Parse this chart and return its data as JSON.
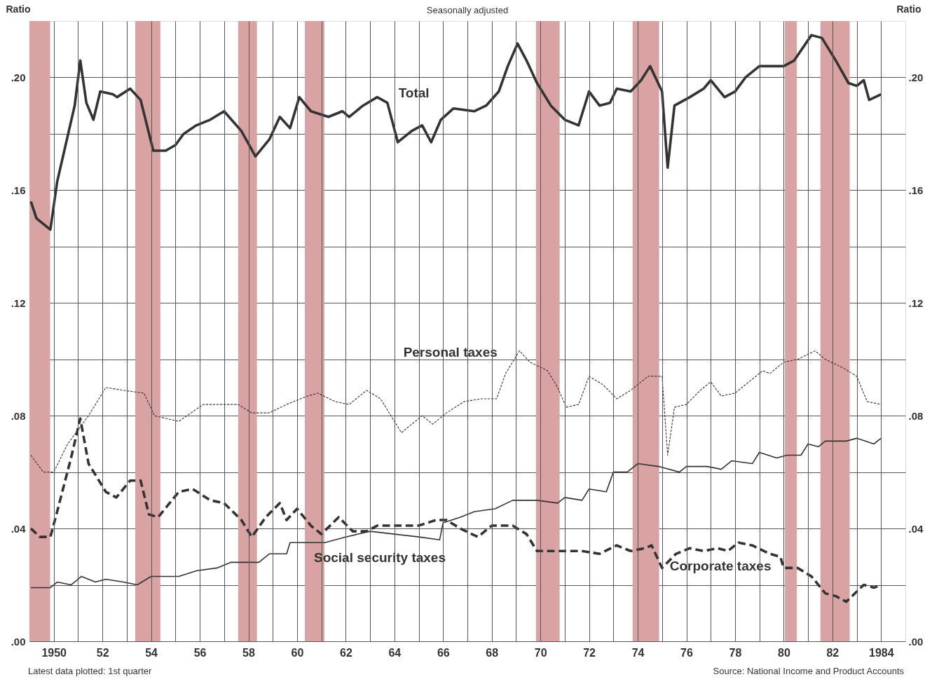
{
  "chart_data": {
    "type": "line",
    "title": "Seasonally adjusted",
    "ylabel": "Ratio",
    "y2label": "Ratio",
    "annotations": [
      "Latest data plotted: 1st quarter",
      "Source: National Income and Product Accounts"
    ],
    "xlim": [
      1949,
      1985
    ],
    "xticks": [
      {
        "value": 1950,
        "label": "1950"
      },
      {
        "value": 1951,
        "label": null
      },
      {
        "value": 1952,
        "label": "52"
      },
      {
        "value": 1953,
        "label": null
      },
      {
        "value": 1954,
        "label": "54"
      },
      {
        "value": 1955,
        "label": null
      },
      {
        "value": 1956,
        "label": "56"
      },
      {
        "value": 1957,
        "label": null
      },
      {
        "value": 1958,
        "label": "58"
      },
      {
        "value": 1959,
        "label": null
      },
      {
        "value": 1960,
        "label": "60"
      },
      {
        "value": 1961,
        "label": null
      },
      {
        "value": 1962,
        "label": "62"
      },
      {
        "value": 1963,
        "label": null
      },
      {
        "value": 1964,
        "label": "64"
      },
      {
        "value": 1965,
        "label": null
      },
      {
        "value": 1966,
        "label": "66"
      },
      {
        "value": 1967,
        "label": null
      },
      {
        "value": 1968,
        "label": "68"
      },
      {
        "value": 1969,
        "label": null
      },
      {
        "value": 1970,
        "label": "70"
      },
      {
        "value": 1971,
        "label": null
      },
      {
        "value": 1972,
        "label": "72"
      },
      {
        "value": 1973,
        "label": null
      },
      {
        "value": 1974,
        "label": "74"
      },
      {
        "value": 1975,
        "label": null
      },
      {
        "value": 1976,
        "label": "76"
      },
      {
        "value": 1977,
        "label": null
      },
      {
        "value": 1978,
        "label": "78"
      },
      {
        "value": 1979,
        "label": null
      },
      {
        "value": 1980,
        "label": "80"
      },
      {
        "value": 1981,
        "label": null
      },
      {
        "value": 1982,
        "label": "82"
      },
      {
        "value": 1983,
        "label": null
      },
      {
        "value": 1984,
        "label": "1984"
      }
    ],
    "ylim": [
      0,
      0.22
    ],
    "yticks": [
      {
        "value": 0,
        "label": ".00"
      },
      {
        "value": 0.02,
        "label": null
      },
      {
        "value": 0.04,
        "label": ".04"
      },
      {
        "value": 0.06,
        "label": null
      },
      {
        "value": 0.08,
        "label": ".08"
      },
      {
        "value": 0.1,
        "label": null
      },
      {
        "value": 0.12,
        "label": ".12"
      },
      {
        "value": 0.14,
        "label": null
      },
      {
        "value": 0.16,
        "label": ".16"
      },
      {
        "value": 0.18,
        "label": null
      },
      {
        "value": 0.2,
        "label": ".20"
      }
    ],
    "y2lim": [
      0,
      0.22
    ],
    "y2ticks": [
      {
        "value": 0,
        "label": ".00"
      },
      {
        "value": 0.04,
        "label": ".04"
      },
      {
        "value": 0.08,
        "label": ".08"
      },
      {
        "value": 0.12,
        "label": ".12"
      },
      {
        "value": 0.16,
        "label": ".16"
      },
      {
        "value": 0.2,
        "label": ".20"
      }
    ],
    "grid": true,
    "bands": [
      {
        "axis": "x",
        "from": 1949,
        "to": 1949.85,
        "color": "#d9a3a3"
      },
      {
        "axis": "x",
        "from": 1953.35,
        "to": 1954.38,
        "color": "#d9a3a3"
      },
      {
        "axis": "x",
        "from": 1957.58,
        "to": 1958.35,
        "color": "#d9a3a3"
      },
      {
        "axis": "x",
        "from": 1960.32,
        "to": 1961.12,
        "color": "#d9a3a3"
      },
      {
        "axis": "x",
        "from": 1969.82,
        "to": 1970.79,
        "color": "#d9a3a3"
      },
      {
        "axis": "x",
        "from": 1973.79,
        "to": 1974.88,
        "color": "#d9a3a3"
      },
      {
        "axis": "x",
        "from": 1980.05,
        "to": 1980.54,
        "color": "#d9a3a3"
      },
      {
        "axis": "x",
        "from": 1981.51,
        "to": 1982.71,
        "color": "#d9a3a3"
      }
    ],
    "series": [
      {
        "name": "Total",
        "color": "#333333",
        "line_style": "solid",
        "x": [
          1949.06,
          1949.29,
          1949.86,
          1950.14,
          1950.86,
          1951.09,
          1951.34,
          1951.63,
          1951.91,
          1952.43,
          1952.6,
          1953.14,
          1953.57,
          1954.09,
          1954.6,
          1955.0,
          1955.34,
          1955.86,
          1956.43,
          1957.0,
          1957.71,
          1958.29,
          1958.86,
          1959.29,
          1959.71,
          1960.09,
          1960.57,
          1961.29,
          1961.86,
          1962.14,
          1962.71,
          1963.29,
          1963.71,
          1964.14,
          1964.71,
          1965.14,
          1965.51,
          1965.91,
          1966.43,
          1967.29,
          1967.77,
          1968.29,
          1968.66,
          1969.06,
          1969.43,
          1969.86,
          1970.43,
          1971.0,
          1971.57,
          1972.0,
          1972.43,
          1972.86,
          1973.14,
          1973.71,
          1974.14,
          1974.51,
          1975.0,
          1975.23,
          1975.51,
          1976.14,
          1976.71,
          1977.0,
          1977.57,
          1978.0,
          1978.43,
          1979.0,
          1979.57,
          1980.0,
          1980.43,
          1981.14,
          1981.57,
          1982.14,
          1982.66,
          1983.0,
          1983.29,
          1983.51,
          1984.0
        ],
        "values": [
          0.156,
          0.15,
          0.146,
          0.163,
          0.19,
          0.206,
          0.191,
          0.185,
          0.195,
          0.194,
          0.193,
          0.196,
          0.192,
          0.174,
          0.174,
          0.176,
          0.18,
          0.183,
          0.185,
          0.188,
          0.181,
          0.172,
          0.178,
          0.186,
          0.182,
          0.193,
          0.188,
          0.186,
          0.188,
          0.186,
          0.19,
          0.193,
          0.191,
          0.177,
          0.181,
          0.183,
          0.177,
          0.185,
          0.189,
          0.188,
          0.19,
          0.195,
          0.204,
          0.212,
          0.206,
          0.198,
          0.19,
          0.185,
          0.183,
          0.195,
          0.19,
          0.191,
          0.196,
          0.195,
          0.199,
          0.204,
          0.195,
          0.168,
          0.19,
          0.193,
          0.196,
          0.199,
          0.193,
          0.195,
          0.2,
          0.204,
          0.204,
          0.204,
          0.206,
          0.215,
          0.214,
          0.206,
          0.198,
          0.197,
          0.199,
          0.192,
          0.194
        ]
      },
      {
        "name": "Personal taxes",
        "color": "#333333",
        "line_style": "dashed",
        "x": [
          1949.06,
          1949.57,
          1950.0,
          1950.57,
          1951.43,
          1952.14,
          1952.86,
          1953.71,
          1954.14,
          1955.14,
          1956.14,
          1957.0,
          1957.57,
          1958.14,
          1958.86,
          1959.57,
          1960.43,
          1960.86,
          1961.57,
          1962.14,
          1962.86,
          1963.43,
          1964.0,
          1964.29,
          1965.14,
          1965.57,
          1966.14,
          1966.86,
          1967.57,
          1968.2,
          1968.57,
          1969.14,
          1969.57,
          1970.29,
          1970.71,
          1971.06,
          1971.57,
          1972.0,
          1972.57,
          1973.14,
          1973.71,
          1974.43,
          1975.0,
          1975.23,
          1975.51,
          1976.0,
          1976.57,
          1977.0,
          1977.43,
          1978.0,
          1978.57,
          1979.14,
          1979.43,
          1980.0,
          1980.57,
          1981.29,
          1981.71,
          1982.43,
          1983.0,
          1983.43,
          1984.0
        ],
        "values": [
          0.066,
          0.06,
          0.06,
          0.07,
          0.08,
          0.09,
          0.089,
          0.088,
          0.08,
          0.078,
          0.084,
          0.084,
          0.084,
          0.081,
          0.081,
          0.084,
          0.087,
          0.088,
          0.085,
          0.084,
          0.089,
          0.086,
          0.078,
          0.074,
          0.08,
          0.077,
          0.081,
          0.085,
          0.086,
          0.086,
          0.095,
          0.103,
          0.099,
          0.096,
          0.09,
          0.083,
          0.084,
          0.094,
          0.091,
          0.086,
          0.089,
          0.094,
          0.094,
          0.066,
          0.083,
          0.084,
          0.089,
          0.092,
          0.087,
          0.088,
          0.092,
          0.096,
          0.095,
          0.099,
          0.1,
          0.103,
          0.1,
          0.097,
          0.094,
          0.085,
          0.084
        ]
      },
      {
        "name": "Social security taxes",
        "color": "#333333",
        "line_style": "solid",
        "x": [
          1949.06,
          1949.86,
          1950.14,
          1950.71,
          1951.14,
          1951.71,
          1952.14,
          1952.86,
          1953.43,
          1954.0,
          1954.71,
          1955.14,
          1955.86,
          1956.71,
          1957.29,
          1958.43,
          1958.86,
          1959.57,
          1959.71,
          1960.86,
          1961.14,
          1962.0,
          1963.0,
          1964.0,
          1965.0,
          1965.86,
          1966.0,
          1966.71,
          1967.29,
          1968.14,
          1968.86,
          1969.86,
          1970.71,
          1971.0,
          1971.71,
          1972.0,
          1972.71,
          1973.0,
          1973.57,
          1974.0,
          1974.86,
          1975.71,
          1976.0,
          1976.86,
          1977.43,
          1977.86,
          1978.71,
          1979.0,
          1979.71,
          1980.14,
          1980.71,
          1981.0,
          1981.43,
          1981.71,
          1982.57,
          1983.0,
          1983.71,
          1984.0
        ],
        "values": [
          0.019,
          0.019,
          0.021,
          0.02,
          0.023,
          0.021,
          0.022,
          0.021,
          0.02,
          0.023,
          0.023,
          0.023,
          0.025,
          0.026,
          0.028,
          0.028,
          0.031,
          0.031,
          0.035,
          0.035,
          0.035,
          0.037,
          0.039,
          0.038,
          0.037,
          0.036,
          0.042,
          0.044,
          0.046,
          0.047,
          0.05,
          0.05,
          0.049,
          0.051,
          0.05,
          0.054,
          0.053,
          0.06,
          0.06,
          0.063,
          0.062,
          0.06,
          0.062,
          0.062,
          0.061,
          0.064,
          0.063,
          0.067,
          0.065,
          0.066,
          0.066,
          0.07,
          0.069,
          0.071,
          0.071,
          0.072,
          0.07,
          0.072
        ]
      },
      {
        "name": "Corporate taxes",
        "color": "#333333",
        "line_style": "dashed",
        "x": [
          1949.06,
          1949.43,
          1949.86,
          1950.14,
          1950.71,
          1951.09,
          1951.43,
          1952.14,
          1952.57,
          1953.14,
          1953.57,
          1953.91,
          1954.29,
          1955.14,
          1955.71,
          1956.43,
          1957.0,
          1957.71,
          1958.14,
          1958.71,
          1959.29,
          1959.57,
          1960.0,
          1960.57,
          1961.0,
          1961.71,
          1962.29,
          1962.86,
          1963.29,
          1963.86,
          1964.43,
          1965.0,
          1965.71,
          1966.14,
          1966.71,
          1967.43,
          1968.0,
          1968.86,
          1969.43,
          1969.86,
          1970.57,
          1971.0,
          1971.71,
          1972.43,
          1973.14,
          1973.71,
          1974.29,
          1974.57,
          1975.0,
          1975.57,
          1976.14,
          1976.71,
          1977.29,
          1977.71,
          1978.14,
          1978.71,
          1979.43,
          1979.86,
          1980.0,
          1980.57,
          1981.14,
          1981.71,
          1982.14,
          1982.57,
          1983.29,
          1983.71,
          1984.0
        ],
        "values": [
          0.04,
          0.037,
          0.037,
          0.046,
          0.065,
          0.079,
          0.063,
          0.053,
          0.051,
          0.057,
          0.057,
          0.045,
          0.044,
          0.053,
          0.054,
          0.05,
          0.049,
          0.043,
          0.037,
          0.044,
          0.049,
          0.043,
          0.047,
          0.041,
          0.038,
          0.044,
          0.039,
          0.039,
          0.041,
          0.041,
          0.041,
          0.041,
          0.043,
          0.043,
          0.04,
          0.037,
          0.041,
          0.041,
          0.038,
          0.032,
          0.032,
          0.032,
          0.032,
          0.031,
          0.034,
          0.032,
          0.033,
          0.034,
          0.026,
          0.031,
          0.033,
          0.032,
          0.033,
          0.032,
          0.035,
          0.034,
          0.031,
          0.03,
          0.026,
          0.026,
          0.023,
          0.017,
          0.016,
          0.014,
          0.02,
          0.019,
          0.02
        ]
      }
    ]
  }
}
